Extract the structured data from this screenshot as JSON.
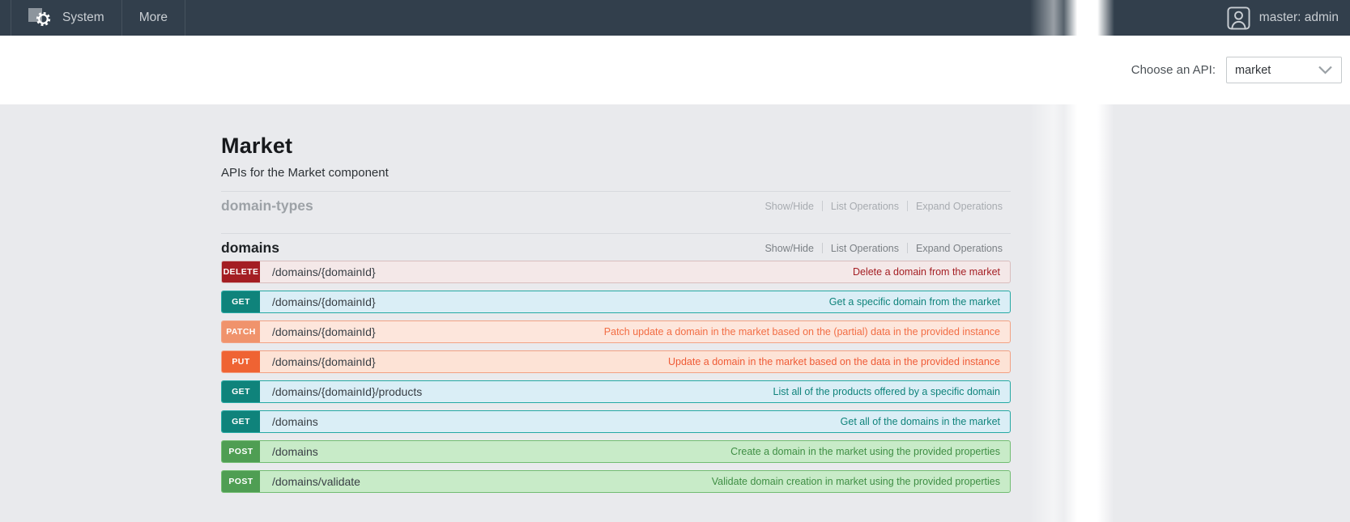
{
  "topbar": {
    "menu_items": [
      "System",
      "More"
    ],
    "user": "master: admin"
  },
  "api_selector": {
    "label": "Choose an API:",
    "value": "market"
  },
  "page": {
    "title": "Market",
    "subtitle": "APIs for the Market component"
  },
  "section_controls": [
    "Show/Hide",
    "List Operations",
    "Expand Operations"
  ],
  "sections": [
    {
      "name": "domain-types"
    },
    {
      "name": "domains"
    }
  ],
  "endpoints": [
    {
      "method": "DELETE",
      "path": "/domains/{domainId}",
      "summary": "Delete a domain from the market"
    },
    {
      "method": "GET",
      "path": "/domains/{domainId}",
      "summary": "Get a specific domain from the market"
    },
    {
      "method": "PATCH",
      "path": "/domains/{domainId}",
      "summary": "Patch update a domain in the market based on the (partial) data in the provided instance"
    },
    {
      "method": "PUT",
      "path": "/domains/{domainId}",
      "summary": "Update a domain in the market based on the data in the provided instance"
    },
    {
      "method": "GET",
      "path": "/domains/{domainId}/products",
      "summary": "List all of the products offered by a specific domain"
    },
    {
      "method": "GET",
      "path": "/domains",
      "summary": "Get all of the domains in the market"
    },
    {
      "method": "POST",
      "path": "/domains",
      "summary": "Create a domain in the market using the provided properties"
    },
    {
      "method": "POST",
      "path": "/domains/validate",
      "summary": "Validate domain creation in market using the provided properties"
    }
  ],
  "method_colors": {
    "DELETE": {
      "badge": "#a41e23",
      "row_bg": "#f4e8e8",
      "border": "#d9bdbd",
      "summary": "#a41e23"
    },
    "GET": {
      "badge": "#0f837b",
      "row_bg": "#daeef6",
      "border": "#25a9a4",
      "summary": "#0f837b"
    },
    "PATCH": {
      "badge": "#f0936c",
      "row_bg": "#fde6dc",
      "border": "#f2a283",
      "summary": "#f26d44"
    },
    "PUT": {
      "badge": "#ef6333",
      "row_bg": "#fde3d6",
      "border": "#f2a083",
      "summary": "#ef5b36"
    },
    "POST": {
      "badge": "#4f9e53",
      "row_bg": "#c8ebc8",
      "border": "#72bd72",
      "summary": "#3f8e44"
    }
  },
  "colors": {
    "topbar_bg": "#323f4c",
    "page_bg": "#e9eaed",
    "header_bg": "#ffffff"
  },
  "icons": {
    "system_logo": "gear",
    "user": "person-outline",
    "select_chevron": "chevron-down"
  }
}
